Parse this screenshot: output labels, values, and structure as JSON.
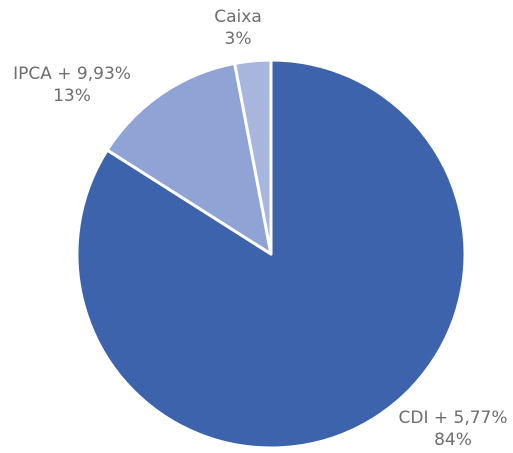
{
  "chart_data": {
    "type": "pie",
    "title": "",
    "slices": [
      {
        "label": "CDI + 5,77%",
        "value": 84,
        "value_label": "84%",
        "color": "#3c63ab"
      },
      {
        "label": "IPCA + 9,93%",
        "value": 13,
        "value_label": "13%",
        "color": "#8fa3d4"
      },
      {
        "label": "Caixa",
        "value": 3,
        "value_label": "3%",
        "color": "#a8b6de"
      }
    ],
    "start_angle": "12 o'clock",
    "direction": "clockwise",
    "slice_border_color": "#ffffff",
    "legend": "none"
  }
}
